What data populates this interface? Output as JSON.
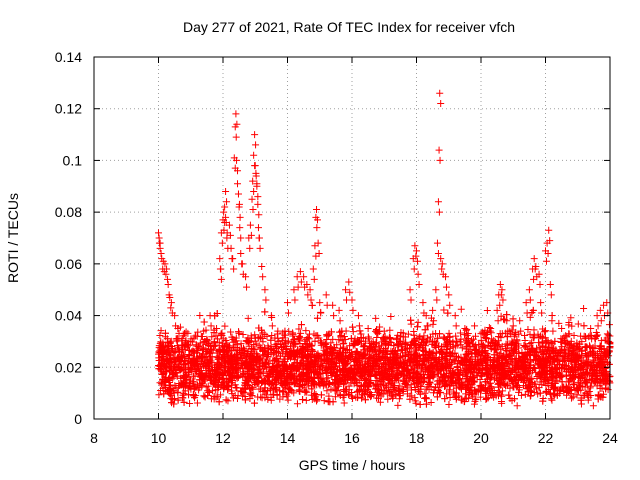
{
  "chart_data": {
    "type": "scatter",
    "title": "Day 277 of 2021, Rate Of TEC Index for receiver vfch",
    "xlabel": "GPS time / hours",
    "ylabel": "ROTI / TECUs",
    "xlim": [
      8,
      24
    ],
    "ylim": [
      0,
      0.14
    ],
    "x_ticks": [
      8,
      10,
      12,
      14,
      16,
      18,
      20,
      22,
      24
    ],
    "y_ticks": [
      0,
      0.02,
      0.04,
      0.06,
      0.08,
      0.1,
      0.12,
      0.14
    ],
    "x_tick_labels": [
      "8",
      "10",
      "12",
      "14",
      "16",
      "18",
      "20",
      "22",
      "24"
    ],
    "y_tick_labels": [
      "0",
      "0.02",
      "0.04",
      "0.06",
      "0.08",
      "0.1",
      "0.12",
      "0.14"
    ],
    "grid": true,
    "marker": "+",
    "marker_color": "#ff0000",
    "series": [
      {
        "name": "ROTI",
        "points": [
          [
            10.0,
            0.072
          ],
          [
            10.02,
            0.07
          ],
          [
            10.05,
            0.068
          ],
          [
            10.1,
            0.062
          ],
          [
            10.15,
            0.061
          ],
          [
            10.2,
            0.06
          ],
          [
            10.25,
            0.058
          ],
          [
            10.3,
            0.052
          ],
          [
            10.35,
            0.047
          ],
          [
            10.4,
            0.045
          ],
          [
            10.5,
            0.04
          ],
          [
            10.6,
            0.035
          ],
          [
            10.8,
            0.033
          ],
          [
            11.0,
            0.03
          ],
          [
            11.2,
            0.032
          ],
          [
            11.4,
            0.034
          ],
          [
            11.6,
            0.04
          ],
          [
            11.8,
            0.035
          ],
          [
            11.9,
            0.062
          ],
          [
            11.92,
            0.058
          ],
          [
            11.95,
            0.072
          ],
          [
            12.0,
            0.077
          ],
          [
            12.02,
            0.08
          ],
          [
            12.05,
            0.082
          ],
          [
            12.08,
            0.088
          ],
          [
            12.1,
            0.076
          ],
          [
            12.12,
            0.07
          ],
          [
            12.2,
            0.075
          ],
          [
            12.25,
            0.066
          ],
          [
            12.3,
            0.062
          ],
          [
            12.35,
            0.101
          ],
          [
            12.38,
            0.113
          ],
          [
            12.4,
            0.118
          ],
          [
            12.42,
            0.1
          ],
          [
            12.45,
            0.091
          ],
          [
            12.48,
            0.087
          ],
          [
            12.5,
            0.082
          ],
          [
            12.52,
            0.074
          ],
          [
            12.55,
            0.064
          ],
          [
            12.6,
            0.06
          ],
          [
            12.7,
            0.055
          ],
          [
            12.8,
            0.07
          ],
          [
            12.85,
            0.075
          ],
          [
            12.9,
            0.085
          ],
          [
            12.92,
            0.092
          ],
          [
            12.95,
            0.102
          ],
          [
            12.98,
            0.11
          ],
          [
            13.0,
            0.098
          ],
          [
            13.02,
            0.095
          ],
          [
            13.05,
            0.09
          ],
          [
            13.08,
            0.083
          ],
          [
            13.1,
            0.074
          ],
          [
            13.12,
            0.07
          ],
          [
            13.2,
            0.059
          ],
          [
            13.3,
            0.05
          ],
          [
            13.5,
            0.04
          ],
          [
            13.7,
            0.034
          ],
          [
            14.0,
            0.045
          ],
          [
            14.2,
            0.05
          ],
          [
            14.3,
            0.055
          ],
          [
            14.4,
            0.057
          ],
          [
            14.5,
            0.055
          ],
          [
            14.6,
            0.052
          ],
          [
            14.7,
            0.05
          ],
          [
            14.8,
            0.058
          ],
          [
            14.85,
            0.067
          ],
          [
            14.88,
            0.078
          ],
          [
            14.9,
            0.081
          ],
          [
            14.95,
            0.068
          ],
          [
            15.0,
            0.045
          ],
          [
            15.2,
            0.048
          ],
          [
            15.4,
            0.044
          ],
          [
            15.6,
            0.042
          ],
          [
            15.8,
            0.05
          ],
          [
            15.9,
            0.053
          ],
          [
            16.0,
            0.046
          ],
          [
            16.2,
            0.04
          ],
          [
            16.5,
            0.035
          ],
          [
            17.0,
            0.034
          ],
          [
            17.5,
            0.032
          ],
          [
            17.8,
            0.05
          ],
          [
            17.9,
            0.062
          ],
          [
            17.95,
            0.067
          ],
          [
            18.0,
            0.065
          ],
          [
            18.05,
            0.056
          ],
          [
            18.2,
            0.045
          ],
          [
            18.3,
            0.04
          ],
          [
            18.5,
            0.042
          ],
          [
            18.6,
            0.05
          ],
          [
            18.65,
            0.068
          ],
          [
            18.68,
            0.084
          ],
          [
            18.7,
            0.104
          ],
          [
            18.72,
            0.126
          ],
          [
            18.75,
            0.062
          ],
          [
            18.8,
            0.06
          ],
          [
            18.9,
            0.055
          ],
          [
            19.0,
            0.048
          ],
          [
            19.2,
            0.04
          ],
          [
            19.5,
            0.035
          ],
          [
            19.8,
            0.036
          ],
          [
            20.0,
            0.033
          ],
          [
            20.3,
            0.035
          ],
          [
            20.5,
            0.042
          ],
          [
            20.55,
            0.048
          ],
          [
            20.6,
            0.052
          ],
          [
            20.65,
            0.05
          ],
          [
            20.8,
            0.038
          ],
          [
            21.0,
            0.036
          ],
          [
            21.2,
            0.038
          ],
          [
            21.4,
            0.045
          ],
          [
            21.5,
            0.05
          ],
          [
            21.6,
            0.058
          ],
          [
            21.65,
            0.062
          ],
          [
            21.7,
            0.059
          ],
          [
            21.8,
            0.056
          ],
          [
            21.85,
            0.045
          ],
          [
            22.0,
            0.065
          ],
          [
            22.05,
            0.068
          ],
          [
            22.1,
            0.073
          ],
          [
            22.15,
            0.052
          ],
          [
            22.2,
            0.038
          ],
          [
            22.5,
            0.035
          ],
          [
            22.8,
            0.03
          ],
          [
            23.0,
            0.028
          ],
          [
            23.2,
            0.032
          ],
          [
            23.4,
            0.035
          ],
          [
            23.6,
            0.04
          ],
          [
            23.7,
            0.042
          ],
          [
            23.8,
            0.044
          ],
          [
            23.9,
            0.045
          ],
          [
            23.95,
            0.03
          ]
        ]
      }
    ],
    "dense_band": {
      "description_values": "bulk of observations 10h-24h",
      "x_range": [
        10.0,
        24.0
      ],
      "y_typical_min": 0.005,
      "y_typical_max": 0.035
    }
  }
}
